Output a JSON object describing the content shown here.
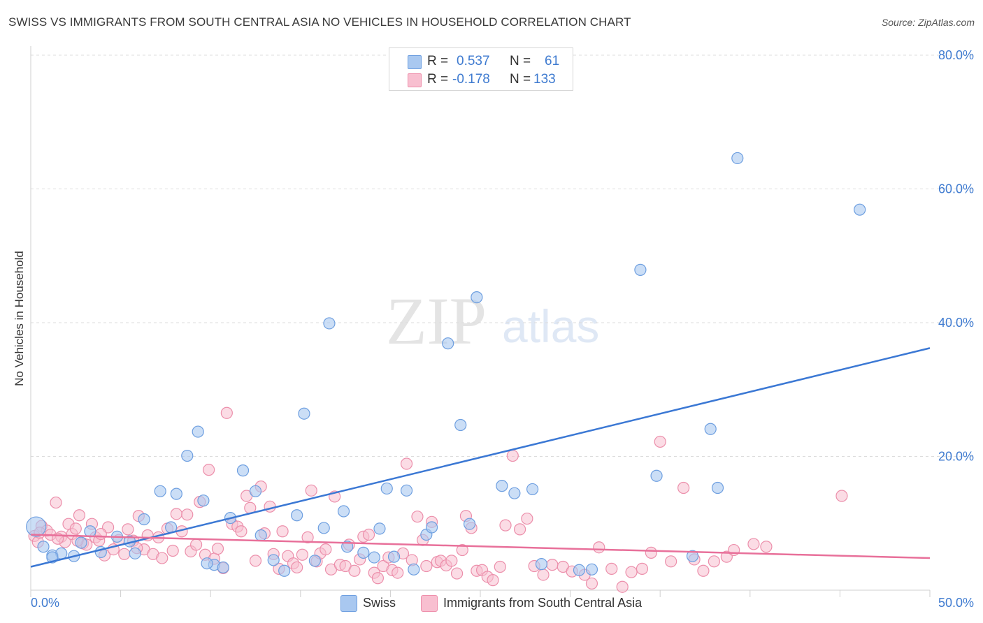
{
  "header": {
    "title": "SWISS VS IMMIGRANTS FROM SOUTH CENTRAL ASIA NO VEHICLES IN HOUSEHOLD CORRELATION CHART",
    "source": "Source: ZipAtlas.com"
  },
  "watermark": {
    "zip": "ZIP",
    "atlas": "atlas"
  },
  "legend_top": {
    "rows": [
      {
        "r_label": "R =",
        "r_value": "0.537",
        "n_label": "N =",
        "n_value": "61",
        "color": "#a9c8f0",
        "border": "#6e9fe0"
      },
      {
        "r_label": "R =",
        "r_value": "-0.178",
        "n_label": "N =",
        "n_value": "133",
        "color": "#f8bfd0",
        "border": "#ee8fab"
      }
    ]
  },
  "legend_bottom": [
    {
      "label": "Swiss",
      "color": "#a9c8f0",
      "border": "#6e9fe0"
    },
    {
      "label": "Immigrants from South Central Asia",
      "color": "#f8bfd0",
      "border": "#ee8fab"
    }
  ],
  "chart_data": {
    "type": "scatter",
    "title": "SWISS VS IMMIGRANTS FROM SOUTH CENTRAL ASIA NO VEHICLES IN HOUSEHOLD CORRELATION CHART",
    "xlabel": "",
    "ylabel": "No Vehicles in Household",
    "xlim": [
      0,
      50
    ],
    "ylim": [
      0,
      80
    ],
    "x_tick_labels": [
      "0.0%",
      "50.0%"
    ],
    "y_ticks": [
      20,
      40,
      60,
      80
    ],
    "y_tick_labels": [
      "20.0%",
      "40.0%",
      "60.0%",
      "80.0%"
    ],
    "grid": "horizontal dashed",
    "legend_position": "top-center and bottom",
    "colors": {
      "swiss": "#3b78d4",
      "swiss_fill": "#a9c8f0",
      "immigrants": "#e8709a",
      "immigrants_fill": "#f8bfd0"
    },
    "series": [
      {
        "name": "Swiss",
        "r": 0.537,
        "n": 61,
        "trend": {
          "x": [
            0,
            50
          ],
          "y": [
            3.5,
            36.2
          ]
        },
        "points": [
          [
            0.3,
            9.5
          ],
          [
            0.7,
            6.5
          ],
          [
            1.2,
            5.2
          ],
          [
            1.7,
            5.5
          ],
          [
            2.8,
            7.1
          ],
          [
            3.3,
            8.8
          ],
          [
            3.9,
            5.7
          ],
          [
            4.8,
            8.0
          ],
          [
            5.5,
            7.3
          ],
          [
            6.3,
            10.6
          ],
          [
            7.2,
            14.8
          ],
          [
            7.8,
            9.4
          ],
          [
            8.1,
            14.4
          ],
          [
            8.7,
            20.1
          ],
          [
            9.3,
            23.7
          ],
          [
            9.6,
            13.4
          ],
          [
            10.2,
            3.8
          ],
          [
            10.7,
            3.4
          ],
          [
            11.1,
            10.8
          ],
          [
            11.8,
            17.9
          ],
          [
            12.5,
            14.8
          ],
          [
            12.8,
            8.2
          ],
          [
            13.5,
            4.5
          ],
          [
            14.1,
            2.9
          ],
          [
            14.8,
            11.2
          ],
          [
            15.2,
            26.4
          ],
          [
            15.8,
            4.4
          ],
          [
            16.3,
            9.3
          ],
          [
            16.6,
            39.9
          ],
          [
            17.4,
            11.8
          ],
          [
            17.6,
            6.5
          ],
          [
            18.5,
            5.6
          ],
          [
            19.1,
            4.9
          ],
          [
            19.4,
            9.2
          ],
          [
            19.8,
            15.2
          ],
          [
            20.2,
            5.0
          ],
          [
            20.9,
            14.9
          ],
          [
            21.3,
            3.1
          ],
          [
            22.0,
            8.3
          ],
          [
            22.3,
            9.4
          ],
          [
            23.2,
            36.9
          ],
          [
            23.9,
            24.7
          ],
          [
            24.4,
            9.9
          ],
          [
            24.8,
            43.8
          ],
          [
            26.2,
            15.6
          ],
          [
            26.9,
            14.5
          ],
          [
            27.9,
            15.1
          ],
          [
            28.4,
            3.9
          ],
          [
            30.5,
            3.0
          ],
          [
            31.2,
            3.1
          ],
          [
            33.9,
            47.9
          ],
          [
            34.8,
            17.1
          ],
          [
            36.8,
            5.1
          ],
          [
            37.8,
            24.1
          ],
          [
            38.2,
            15.3
          ],
          [
            39.3,
            64.6
          ],
          [
            46.1,
            56.9
          ],
          [
            1.2,
            4.9
          ],
          [
            2.4,
            5.1
          ],
          [
            5.8,
            5.5
          ],
          [
            9.8,
            4.0
          ]
        ]
      },
      {
        "name": "Immigrants from South Central Asia",
        "r": -0.178,
        "n": 133,
        "trend": {
          "x": [
            0,
            50
          ],
          "y": [
            8.3,
            4.8
          ]
        },
        "points": [
          [
            0.2,
            8.1
          ],
          [
            0.4,
            7.2
          ],
          [
            0.6,
            9.6
          ],
          [
            0.9,
            8.9
          ],
          [
            1.1,
            8.3
          ],
          [
            1.4,
            13.1
          ],
          [
            1.7,
            8.0
          ],
          [
            1.9,
            7.2
          ],
          [
            2.1,
            9.9
          ],
          [
            2.3,
            8.4
          ],
          [
            2.5,
            9.2
          ],
          [
            2.7,
            11.2
          ],
          [
            2.9,
            7.0
          ],
          [
            3.1,
            6.8
          ],
          [
            3.4,
            9.9
          ],
          [
            3.6,
            7.9
          ],
          [
            3.8,
            7.4
          ],
          [
            4.1,
            5.2
          ],
          [
            4.3,
            9.4
          ],
          [
            4.6,
            6.1
          ],
          [
            4.9,
            7.5
          ],
          [
            5.2,
            5.4
          ],
          [
            5.4,
            9.1
          ],
          [
            5.7,
            7.4
          ],
          [
            6.0,
            11.1
          ],
          [
            6.3,
            6.1
          ],
          [
            6.5,
            8.2
          ],
          [
            6.8,
            5.4
          ],
          [
            7.1,
            7.9
          ],
          [
            7.3,
            4.8
          ],
          [
            7.6,
            9.2
          ],
          [
            7.9,
            5.9
          ],
          [
            8.1,
            11.4
          ],
          [
            8.4,
            8.8
          ],
          [
            8.7,
            11.3
          ],
          [
            8.9,
            5.8
          ],
          [
            9.2,
            6.8
          ],
          [
            9.4,
            13.2
          ],
          [
            9.7,
            5.3
          ],
          [
            9.9,
            18.0
          ],
          [
            10.2,
            4.7
          ],
          [
            10.4,
            6.2
          ],
          [
            10.7,
            3.3
          ],
          [
            10.9,
            26.5
          ],
          [
            11.2,
            9.9
          ],
          [
            11.5,
            9.5
          ],
          [
            11.7,
            8.8
          ],
          [
            12.0,
            14.1
          ],
          [
            12.2,
            12.3
          ],
          [
            12.5,
            4.4
          ],
          [
            12.8,
            15.5
          ],
          [
            13.0,
            8.5
          ],
          [
            13.3,
            12.5
          ],
          [
            13.5,
            5.4
          ],
          [
            13.8,
            3.2
          ],
          [
            14.0,
            8.8
          ],
          [
            14.3,
            5.1
          ],
          [
            14.6,
            4.0
          ],
          [
            14.8,
            3.4
          ],
          [
            15.1,
            5.3
          ],
          [
            15.4,
            7.9
          ],
          [
            15.6,
            14.9
          ],
          [
            15.9,
            4.3
          ],
          [
            16.1,
            5.5
          ],
          [
            16.4,
            6.1
          ],
          [
            16.7,
            3.1
          ],
          [
            16.9,
            14.0
          ],
          [
            17.2,
            3.8
          ],
          [
            17.5,
            3.6
          ],
          [
            17.7,
            6.8
          ],
          [
            18.0,
            2.9
          ],
          [
            18.3,
            4.6
          ],
          [
            18.5,
            8.0
          ],
          [
            18.8,
            8.3
          ],
          [
            19.1,
            2.6
          ],
          [
            19.3,
            1.8
          ],
          [
            19.6,
            3.6
          ],
          [
            19.9,
            4.9
          ],
          [
            20.1,
            3.0
          ],
          [
            20.4,
            2.6
          ],
          [
            20.7,
            5.5
          ],
          [
            20.9,
            18.9
          ],
          [
            21.2,
            4.5
          ],
          [
            21.5,
            11.0
          ],
          [
            21.8,
            7.5
          ],
          [
            22.0,
            3.6
          ],
          [
            22.3,
            10.2
          ],
          [
            22.6,
            4.2
          ],
          [
            22.8,
            4.4
          ],
          [
            23.1,
            3.7
          ],
          [
            23.4,
            4.4
          ],
          [
            23.7,
            2.5
          ],
          [
            24.0,
            6.0
          ],
          [
            24.2,
            11.1
          ],
          [
            24.5,
            9.3
          ],
          [
            24.8,
            2.9
          ],
          [
            25.1,
            3.0
          ],
          [
            25.4,
            2.0
          ],
          [
            25.7,
            1.5
          ],
          [
            26.1,
            3.5
          ],
          [
            26.4,
            9.7
          ],
          [
            26.8,
            20.1
          ],
          [
            27.2,
            9.1
          ],
          [
            27.6,
            10.7
          ],
          [
            28.0,
            3.6
          ],
          [
            28.5,
            2.3
          ],
          [
            29.0,
            3.8
          ],
          [
            29.6,
            3.5
          ],
          [
            30.1,
            2.8
          ],
          [
            30.8,
            2.3
          ],
          [
            31.2,
            1.0
          ],
          [
            31.6,
            6.4
          ],
          [
            32.3,
            3.2
          ],
          [
            32.9,
            0.5
          ],
          [
            33.4,
            2.7
          ],
          [
            34.0,
            3.2
          ],
          [
            34.5,
            5.6
          ],
          [
            35.0,
            22.2
          ],
          [
            35.6,
            4.3
          ],
          [
            36.3,
            15.3
          ],
          [
            36.9,
            4.6
          ],
          [
            37.4,
            2.9
          ],
          [
            38.0,
            4.3
          ],
          [
            38.7,
            5.0
          ],
          [
            39.1,
            6.0
          ],
          [
            40.2,
            6.9
          ],
          [
            40.9,
            6.5
          ],
          [
            45.1,
            14.1
          ],
          [
            0.5,
            8.6
          ],
          [
            1.5,
            7.7
          ],
          [
            2.6,
            7.4
          ],
          [
            3.9,
            8.4
          ],
          [
            5.9,
            6.3
          ]
        ]
      }
    ]
  }
}
